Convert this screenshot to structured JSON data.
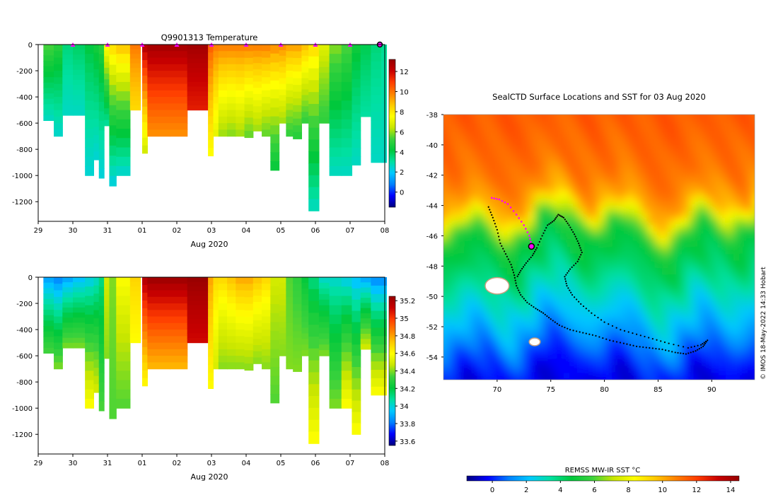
{
  "colors": {
    "jet_stops": [
      "#00007f",
      "#0000ff",
      "#007fff",
      "#00c8ff",
      "#00e0a0",
      "#00c83c",
      "#3cd23c",
      "#c8e600",
      "#ffff00",
      "#ffc800",
      "#ff7f00",
      "#ff3c00",
      "#c80000",
      "#960000"
    ],
    "track": "#000000",
    "surface_marker": "#ff00ff",
    "land": "#ffffff",
    "land_edge": "#c8a080"
  },
  "credit": "© IMOS 18-May-2022 14:33 Hobart",
  "chart_data": [
    {
      "type": "heatmap",
      "title": "Q9901313  Temperature",
      "xlabel": "Aug 2020",
      "ylabel": "",
      "x_tick_labels": [
        "29",
        "30",
        "31",
        "01",
        "02",
        "03",
        "04",
        "05",
        "06",
        "07",
        "08"
      ],
      "x_tick_days": [
        29,
        30,
        31,
        32,
        33,
        34,
        35,
        36,
        37,
        38,
        39
      ],
      "xlim_days": [
        29,
        39
      ],
      "ylim": [
        -1350,
        0
      ],
      "y_ticks": [
        0,
        -200,
        -400,
        -600,
        -800,
        -1000,
        -1200
      ],
      "y_tick_labels": [
        "0",
        "-200",
        "-400",
        "-600",
        "-800",
        "-1000",
        "-1200"
      ],
      "colorbar": {
        "min": -1.5,
        "max": 13.2,
        "ticks": [
          0,
          2,
          4,
          6,
          8,
          10,
          12
        ],
        "tick_labels": [
          "0",
          "2",
          "4",
          "6",
          "8",
          "10",
          "12"
        ]
      },
      "surface_marker_days": [
        30,
        31,
        32,
        33,
        34,
        35,
        36,
        37,
        38
      ],
      "last_position_day": 39,
      "profiles": [
        {
          "t0": 29.15,
          "t1": 29.45,
          "depth": 580,
          "surface": 5.5,
          "bottom": 2.6
        },
        {
          "t0": 29.45,
          "t1": 29.7,
          "depth": 700,
          "surface": 5.0,
          "bottom": 2.5
        },
        {
          "t0": 29.7,
          "t1": 30.0,
          "depth": 540,
          "surface": 3.5,
          "bottom": 2.6
        },
        {
          "t0": 30.0,
          "t1": 30.35,
          "depth": 540,
          "surface": 3.8,
          "bottom": 2.6
        },
        {
          "t0": 30.35,
          "t1": 30.6,
          "depth": 1000,
          "surface": 4.2,
          "bottom": 2.4
        },
        {
          "t0": 30.6,
          "t1": 30.75,
          "depth": 880,
          "surface": 4.6,
          "bottom": 2.4
        },
        {
          "t0": 30.75,
          "t1": 30.9,
          "depth": 1020,
          "surface": 5.0,
          "bottom": 2.3
        },
        {
          "t0": 30.9,
          "t1": 31.05,
          "depth": 620,
          "surface": 8.0,
          "bottom": 3.0
        },
        {
          "t0": 31.05,
          "t1": 31.25,
          "depth": 1080,
          "surface": 8.5,
          "bottom": 2.2
        },
        {
          "t0": 31.25,
          "t1": 31.65,
          "depth": 1000,
          "surface": 9.0,
          "bottom": 2.4
        },
        {
          "t0": 31.65,
          "t1": 31.95,
          "depth": 500,
          "surface": 10.0,
          "bottom": 8.3
        },
        {
          "t0": 32.0,
          "t1": 32.15,
          "depth": 830,
          "surface": 12.8,
          "bottom": 6.5
        },
        {
          "t0": 32.15,
          "t1": 32.8,
          "depth": 700,
          "surface": 13.0,
          "bottom": 9.5
        },
        {
          "t0": 32.8,
          "t1": 33.3,
          "depth": 700,
          "surface": 13.0,
          "bottom": 9.5
        },
        {
          "t0": 33.3,
          "t1": 33.9,
          "depth": 500,
          "surface": 13.0,
          "bottom": 11.5
        },
        {
          "t0": 33.9,
          "t1": 34.05,
          "depth": 850,
          "surface": 10.5,
          "bottom": 7.5
        },
        {
          "t0": 34.05,
          "t1": 34.2,
          "depth": 700,
          "surface": 10.0,
          "bottom": 7.0
        },
        {
          "t0": 34.2,
          "t1": 34.45,
          "depth": 700,
          "surface": 10.0,
          "bottom": 6.0
        },
        {
          "t0": 34.45,
          "t1": 34.7,
          "depth": 700,
          "surface": 10.0,
          "bottom": 5.8
        },
        {
          "t0": 34.7,
          "t1": 34.95,
          "depth": 700,
          "surface": 10.0,
          "bottom": 6.0
        },
        {
          "t0": 34.95,
          "t1": 35.2,
          "depth": 710,
          "surface": 10.0,
          "bottom": 5.5
        },
        {
          "t0": 35.2,
          "t1": 35.45,
          "depth": 660,
          "surface": 10.0,
          "bottom": 6.0
        },
        {
          "t0": 35.45,
          "t1": 35.7,
          "depth": 700,
          "surface": 10.0,
          "bottom": 5.5
        },
        {
          "t0": 35.7,
          "t1": 35.95,
          "depth": 960,
          "surface": 9.8,
          "bottom": 4.2
        },
        {
          "t0": 35.95,
          "t1": 36.15,
          "depth": 600,
          "surface": 9.8,
          "bottom": 6.0
        },
        {
          "t0": 36.15,
          "t1": 36.35,
          "depth": 700,
          "surface": 9.5,
          "bottom": 5.0
        },
        {
          "t0": 36.35,
          "t1": 36.6,
          "depth": 720,
          "surface": 9.5,
          "bottom": 4.8
        },
        {
          "t0": 36.6,
          "t1": 36.8,
          "depth": 600,
          "surface": 9.0,
          "bottom": 5.0
        },
        {
          "t0": 36.8,
          "t1": 37.1,
          "depth": 1270,
          "surface": 8.5,
          "bottom": 2.6
        },
        {
          "t0": 37.1,
          "t1": 37.4,
          "depth": 600,
          "surface": 7.0,
          "bottom": 5.0
        },
        {
          "t0": 37.4,
          "t1": 37.75,
          "depth": 1000,
          "surface": 6.0,
          "bottom": 2.6
        },
        {
          "t0": 37.75,
          "t1": 38.05,
          "depth": 1000,
          "surface": 5.5,
          "bottom": 2.6
        },
        {
          "t0": 38.05,
          "t1": 38.3,
          "depth": 920,
          "surface": 4.5,
          "bottom": 2.6
        },
        {
          "t0": 38.3,
          "t1": 38.6,
          "depth": 550,
          "surface": 4.0,
          "bottom": 3.0
        },
        {
          "t0": 38.6,
          "t1": 38.9,
          "depth": 900,
          "surface": 3.5,
          "bottom": 2.6
        },
        {
          "t0": 38.9,
          "t1": 39.05,
          "depth": 900,
          "surface": 3.2,
          "bottom": 2.6
        }
      ]
    },
    {
      "type": "heatmap",
      "title": "",
      "xlabel": "Aug 2020",
      "ylabel": "",
      "x_tick_labels": [
        "29",
        "30",
        "31",
        "01",
        "02",
        "03",
        "04",
        "05",
        "06",
        "07",
        "08"
      ],
      "x_tick_days": [
        29,
        30,
        31,
        32,
        33,
        34,
        35,
        36,
        37,
        38,
        39
      ],
      "xlim_days": [
        29,
        39
      ],
      "ylim": [
        -1350,
        0
      ],
      "y_ticks": [
        0,
        -200,
        -400,
        -600,
        -800,
        -1000,
        -1200
      ],
      "y_tick_labels": [
        "0",
        "-200",
        "-400",
        "-600",
        "-800",
        "-1000",
        "-1200"
      ],
      "colorbar": {
        "min": 33.55,
        "max": 35.25,
        "ticks": [
          33.6,
          33.8,
          34.0,
          34.2,
          34.4,
          34.6,
          34.8,
          35.0,
          35.2
        ],
        "tick_labels": [
          "33.6",
          "33.8",
          "34",
          "34.2",
          "34.4",
          "34.6",
          "34.8",
          "35",
          "35.2"
        ]
      },
      "profiles": [
        {
          "t0": 29.15,
          "t1": 29.45,
          "depth": 580,
          "surface": 33.85,
          "bottom": 34.35
        },
        {
          "t0": 29.45,
          "t1": 29.7,
          "depth": 700,
          "surface": 33.8,
          "bottom": 34.4
        },
        {
          "t0": 29.7,
          "t1": 30.0,
          "depth": 540,
          "surface": 33.85,
          "bottom": 34.4
        },
        {
          "t0": 30.0,
          "t1": 30.35,
          "depth": 540,
          "surface": 33.9,
          "bottom": 34.4
        },
        {
          "t0": 30.35,
          "t1": 30.6,
          "depth": 1000,
          "surface": 33.95,
          "bottom": 34.6
        },
        {
          "t0": 30.6,
          "t1": 30.75,
          "depth": 880,
          "surface": 34.0,
          "bottom": 34.5
        },
        {
          "t0": 30.75,
          "t1": 30.9,
          "depth": 1020,
          "surface": 34.1,
          "bottom": 34.35
        },
        {
          "t0": 30.9,
          "t1": 31.05,
          "depth": 620,
          "surface": 34.5,
          "bottom": 34.4
        },
        {
          "t0": 31.05,
          "t1": 31.25,
          "depth": 1080,
          "surface": 34.4,
          "bottom": 34.35
        },
        {
          "t0": 31.25,
          "t1": 31.65,
          "depth": 1000,
          "surface": 34.6,
          "bottom": 34.35
        },
        {
          "t0": 31.65,
          "t1": 31.95,
          "depth": 500,
          "surface": 34.7,
          "bottom": 34.6
        },
        {
          "t0": 32.0,
          "t1": 32.15,
          "depth": 830,
          "surface": 35.2,
          "bottom": 34.6
        },
        {
          "t0": 32.15,
          "t1": 32.8,
          "depth": 700,
          "surface": 35.25,
          "bottom": 34.75
        },
        {
          "t0": 32.8,
          "t1": 33.3,
          "depth": 700,
          "surface": 35.25,
          "bottom": 34.75
        },
        {
          "t0": 33.3,
          "t1": 33.9,
          "depth": 500,
          "surface": 35.25,
          "bottom": 35.1
        },
        {
          "t0": 33.9,
          "t1": 34.05,
          "depth": 850,
          "surface": 34.8,
          "bottom": 34.6
        },
        {
          "t0": 34.05,
          "t1": 34.2,
          "depth": 700,
          "surface": 34.7,
          "bottom": 34.5
        },
        {
          "t0": 34.2,
          "t1": 34.45,
          "depth": 700,
          "surface": 34.7,
          "bottom": 34.4
        },
        {
          "t0": 34.45,
          "t1": 34.7,
          "depth": 700,
          "surface": 34.75,
          "bottom": 34.4
        },
        {
          "t0": 34.7,
          "t1": 34.95,
          "depth": 700,
          "surface": 34.8,
          "bottom": 34.4
        },
        {
          "t0": 34.95,
          "t1": 35.2,
          "depth": 710,
          "surface": 34.8,
          "bottom": 34.4
        },
        {
          "t0": 35.2,
          "t1": 35.45,
          "depth": 660,
          "surface": 34.75,
          "bottom": 34.4
        },
        {
          "t0": 35.45,
          "t1": 35.7,
          "depth": 700,
          "surface": 34.7,
          "bottom": 34.4
        },
        {
          "t0": 35.7,
          "t1": 35.95,
          "depth": 960,
          "surface": 34.5,
          "bottom": 34.35
        },
        {
          "t0": 35.95,
          "t1": 36.15,
          "depth": 600,
          "surface": 34.5,
          "bottom": 34.4
        },
        {
          "t0": 36.15,
          "t1": 36.35,
          "depth": 700,
          "surface": 34.35,
          "bottom": 34.4
        },
        {
          "t0": 36.35,
          "t1": 36.6,
          "depth": 720,
          "surface": 34.3,
          "bottom": 34.4
        },
        {
          "t0": 36.6,
          "t1": 36.8,
          "depth": 600,
          "surface": 34.2,
          "bottom": 34.4
        },
        {
          "t0": 36.8,
          "t1": 37.1,
          "depth": 1270,
          "surface": 34.1,
          "bottom": 34.6
        },
        {
          "t0": 37.1,
          "t1": 37.4,
          "depth": 600,
          "surface": 34.0,
          "bottom": 34.4
        },
        {
          "t0": 37.4,
          "t1": 37.75,
          "depth": 1000,
          "surface": 34.0,
          "bottom": 34.4
        },
        {
          "t0": 37.75,
          "t1": 38.05,
          "depth": 1000,
          "surface": 33.95,
          "bottom": 34.6
        },
        {
          "t0": 38.05,
          "t1": 38.3,
          "depth": 1200,
          "surface": 33.9,
          "bottom": 34.6
        },
        {
          "t0": 38.3,
          "t1": 38.6,
          "depth": 550,
          "surface": 33.85,
          "bottom": 34.5
        },
        {
          "t0": 38.6,
          "t1": 38.9,
          "depth": 900,
          "surface": 33.8,
          "bottom": 34.6
        },
        {
          "t0": 38.9,
          "t1": 39.05,
          "depth": 900,
          "surface": 33.8,
          "bottom": 34.6
        }
      ]
    },
    {
      "type": "heatmap",
      "title": "SealCTD Surface Locations and SST for 03 Aug 2020",
      "xlabel": "",
      "ylabel": "",
      "xlim": [
        65,
        94
      ],
      "ylim": [
        -55.5,
        -38
      ],
      "x_ticks": [
        70,
        75,
        80,
        85,
        90
      ],
      "x_tick_labels": [
        "70",
        "75",
        "80",
        "85",
        "90"
      ],
      "y_ticks": [
        -38,
        -40,
        -42,
        -44,
        -46,
        -48,
        -50,
        -52,
        -54
      ],
      "y_tick_labels": [
        "-38",
        "-40",
        "-42",
        "-44",
        "-46",
        "-48",
        "-50",
        "-52",
        "-54"
      ],
      "colorbar": {
        "label": "REMSS MW-IR SST °C",
        "min": -1.5,
        "max": 14.5,
        "ticks": [
          0,
          2,
          4,
          6,
          8,
          10,
          12,
          14
        ],
        "tick_labels": [
          "0",
          "2",
          "4",
          "6",
          "8",
          "10",
          "12",
          "14"
        ]
      },
      "sst_by_latitude": [
        {
          "lat": -38,
          "sst": 11.5
        },
        {
          "lat": -42,
          "sst": 11.0
        },
        {
          "lat": -44,
          "sst": 10.0
        },
        {
          "lat": -45,
          "sst": 7.0
        },
        {
          "lat": -46,
          "sst": 5.0
        },
        {
          "lat": -48,
          "sst": 4.2
        },
        {
          "lat": -50,
          "sst": 3.0
        },
        {
          "lat": -52,
          "sst": 1.8
        },
        {
          "lat": -54,
          "sst": 0.3
        },
        {
          "lat": -55.5,
          "sst": -0.5
        }
      ],
      "track": [
        [
          69.2,
          -44.1
        ],
        [
          69.6,
          -44.8
        ],
        [
          70.0,
          -45.6
        ],
        [
          70.3,
          -46.5
        ],
        [
          70.8,
          -47.2
        ],
        [
          71.3,
          -47.9
        ],
        [
          71.6,
          -48.6
        ],
        [
          71.8,
          -49.3
        ],
        [
          72.2,
          -49.9
        ],
        [
          72.8,
          -50.4
        ],
        [
          73.6,
          -50.8
        ],
        [
          74.3,
          -51.1
        ],
        [
          75.0,
          -51.5
        ],
        [
          75.8,
          -51.9
        ],
        [
          76.8,
          -52.2
        ],
        [
          78.0,
          -52.4
        ],
        [
          79.2,
          -52.6
        ],
        [
          80.5,
          -52.9
        ],
        [
          81.8,
          -53.1
        ],
        [
          83.0,
          -53.3
        ],
        [
          84.2,
          -53.4
        ],
        [
          85.4,
          -53.5
        ],
        [
          86.6,
          -53.7
        ],
        [
          87.6,
          -53.8
        ],
        [
          88.5,
          -53.6
        ],
        [
          89.2,
          -53.3
        ],
        [
          89.6,
          -52.9
        ],
        [
          89.0,
          -53.2
        ],
        [
          87.8,
          -53.4
        ],
        [
          86.0,
          -53.1
        ],
        [
          84.5,
          -52.8
        ],
        [
          83.0,
          -52.5
        ],
        [
          81.5,
          -52.2
        ],
        [
          80.0,
          -51.7
        ],
        [
          78.8,
          -51.1
        ],
        [
          77.8,
          -50.5
        ],
        [
          77.0,
          -49.9
        ],
        [
          76.5,
          -49.3
        ],
        [
          76.3,
          -48.7
        ],
        [
          76.8,
          -48.2
        ],
        [
          77.5,
          -47.7
        ],
        [
          77.9,
          -47.1
        ],
        [
          77.6,
          -46.5
        ],
        [
          77.2,
          -45.9
        ],
        [
          76.7,
          -45.3
        ],
        [
          76.2,
          -44.8
        ],
        [
          75.7,
          -44.6
        ],
        [
          75.3,
          -45.0
        ],
        [
          74.7,
          -45.3
        ],
        [
          74.2,
          -46.0
        ],
        [
          73.7,
          -46.8
        ],
        [
          73.3,
          -47.3
        ],
        [
          72.7,
          -47.8
        ],
        [
          72.2,
          -48.3
        ],
        [
          71.8,
          -48.8
        ]
      ],
      "surface_track": [
        [
          69.5,
          -43.5
        ],
        [
          70.2,
          -43.6
        ],
        [
          71.0,
          -43.9
        ],
        [
          71.8,
          -44.6
        ],
        [
          72.5,
          -45.3
        ],
        [
          73.0,
          -46.0
        ],
        [
          73.2,
          -46.6
        ]
      ],
      "last_position": [
        73.2,
        -46.7
      ],
      "islands": [
        {
          "lon": 70.0,
          "lat": -49.3,
          "size": 1.0
        },
        {
          "lon": 73.5,
          "lat": -53.0,
          "size": 0.3
        }
      ]
    }
  ]
}
